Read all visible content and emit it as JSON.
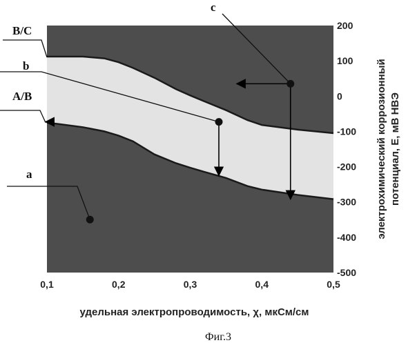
{
  "chart_data": {
    "type": "area",
    "x_axis": {
      "label": "удельная электропроводимость, χ, мкСм/см",
      "range": [
        0.1,
        0.5
      ],
      "ticks": [
        0.1,
        0.2,
        0.3,
        0.4,
        0.5
      ],
      "tick_labels": [
        "0,1",
        "0,2",
        "0,3",
        "0,4",
        "0,5"
      ]
    },
    "y_axis": {
      "label_line1": "электрохимический коррозионный",
      "label_line2": "потенциал, Е, мВ НВЭ",
      "range": [
        -500,
        200
      ],
      "ticks": [
        200,
        100,
        0,
        -100,
        -200,
        -300,
        -400,
        -500
      ],
      "tick_labels": [
        "200",
        "100",
        "0",
        "-100",
        "-200",
        "-300",
        "-400",
        "-500"
      ],
      "position": "right"
    },
    "grid": false,
    "boundaries": [
      {
        "label": "B/C",
        "x": [
          0.1,
          0.12,
          0.15,
          0.18,
          0.2,
          0.22,
          0.25,
          0.28,
          0.3,
          0.32,
          0.35,
          0.38,
          0.4,
          0.45,
          0.5
        ],
        "y": [
          112,
          112,
          112,
          107,
          96,
          80,
          52,
          20,
          2,
          -15,
          -40,
          -68,
          -82,
          -95,
          -105
        ]
      },
      {
        "label": "A/B",
        "x": [
          0.1,
          0.12,
          0.15,
          0.18,
          0.2,
          0.22,
          0.25,
          0.28,
          0.3,
          0.32,
          0.35,
          0.38,
          0.4,
          0.45,
          0.5
        ],
        "y": [
          -75,
          -80,
          -88,
          -100,
          -112,
          -128,
          -165,
          -190,
          -203,
          -215,
          -232,
          -255,
          -265,
          -280,
          -292
        ]
      }
    ],
    "regions": [
      {
        "label": "a",
        "color": "#4d4d4d"
      },
      {
        "label": "b",
        "color": "#e3e3e3"
      },
      {
        "label": "c",
        "color": "#4d4d4d"
      }
    ],
    "points": [
      {
        "x": 0.34,
        "y": -73
      },
      {
        "x": 0.44,
        "y": 35
      },
      {
        "x": 0.16,
        "y": -350
      }
    ],
    "arrows": [
      {
        "from": [
          0.34,
          -73
        ],
        "to": [
          0.34,
          -225
        ]
      },
      {
        "from": [
          0.44,
          35
        ],
        "to": [
          0.44,
          -292
        ]
      },
      {
        "from": [
          0.44,
          35
        ],
        "to": [
          0.365,
          35
        ]
      }
    ]
  },
  "annotations": {
    "bc": "B/C",
    "b": "b",
    "ab": "A/B",
    "a": "a",
    "c": "c"
  },
  "caption": "Фиг.3"
}
